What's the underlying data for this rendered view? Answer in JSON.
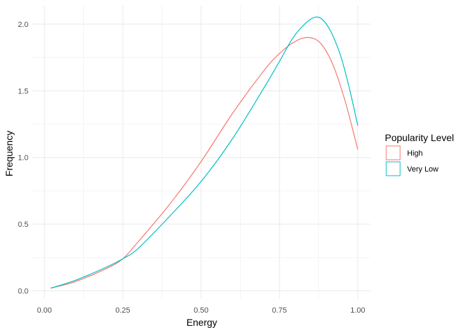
{
  "chart_data": {
    "type": "line",
    "xlabel": "Energy",
    "ylabel": "Frequency",
    "xlim": [
      -0.04,
      1.04
    ],
    "ylim": [
      -0.06,
      2.14
    ],
    "x_ticks": [
      0.0,
      0.25,
      0.5,
      0.75,
      1.0
    ],
    "x_tick_labels": [
      "0.00",
      "0.25",
      "0.50",
      "0.75",
      "1.00"
    ],
    "y_ticks": [
      0.0,
      0.5,
      1.0,
      1.5,
      2.0
    ],
    "y_tick_labels": [
      "0.0",
      "0.5",
      "1.0",
      "1.5",
      "2.0"
    ],
    "grid": true,
    "legend": {
      "title": "Popularity Level",
      "placement": "right"
    },
    "series": [
      {
        "name": "High",
        "color": "#F8766D",
        "x": [
          0.02,
          0.1,
          0.2,
          0.25,
          0.3,
          0.4,
          0.5,
          0.6,
          0.7,
          0.75,
          0.8,
          0.84,
          0.88,
          0.92,
          0.96,
          1.0
        ],
        "y": [
          0.02,
          0.07,
          0.17,
          0.24,
          0.37,
          0.65,
          0.97,
          1.33,
          1.65,
          1.78,
          1.87,
          1.9,
          1.86,
          1.7,
          1.42,
          1.06
        ]
      },
      {
        "name": "Very Low",
        "color": "#00BFC4",
        "x": [
          0.02,
          0.1,
          0.2,
          0.25,
          0.3,
          0.4,
          0.5,
          0.6,
          0.7,
          0.75,
          0.8,
          0.86,
          0.9,
          0.94,
          0.97,
          1.0
        ],
        "y": [
          0.02,
          0.08,
          0.18,
          0.24,
          0.32,
          0.56,
          0.82,
          1.14,
          1.52,
          1.72,
          1.92,
          2.05,
          2.0,
          1.8,
          1.55,
          1.24
        ]
      }
    ]
  }
}
